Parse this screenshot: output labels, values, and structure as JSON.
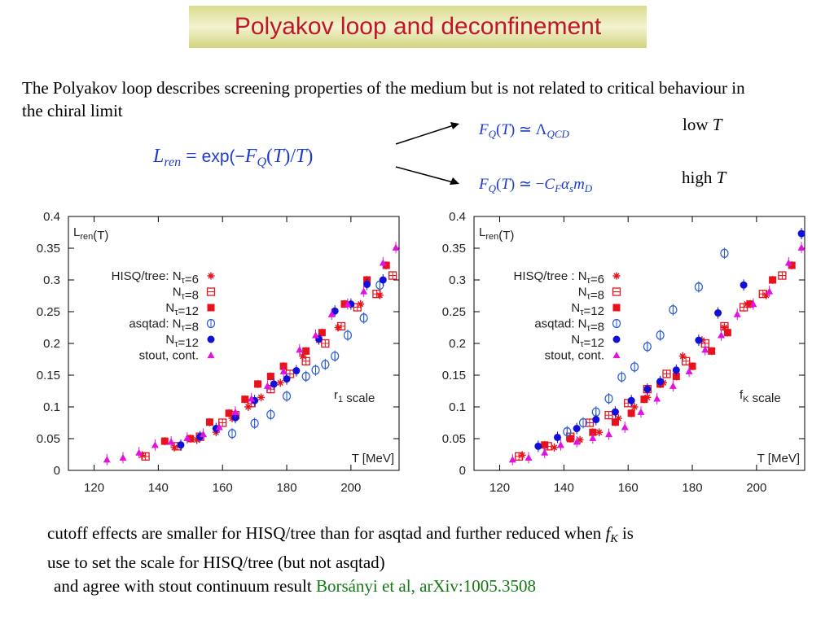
{
  "title": "Polyakov loop  and deconfinement",
  "intro": "The Polyakov loop describes screening properties of the medium but is not related to critical behaviour in the chiral limit",
  "formulas": {
    "main": "L_ren = exp(−F_Q(T)/T)",
    "low": "F_Q(T) ≃ Λ_QCD",
    "high": "F_Q(T) ≃ −C_F α_s m_D"
  },
  "labels": {
    "low": "low",
    "high": "high",
    "var": "T"
  },
  "bottom": {
    "line1_pre": "cutoff effects are smaller for HISQ/tree than for asqtad and further reduced when",
    "line1_fk": "f",
    "line1_fk_sub": "K",
    "line1_post": "is",
    "line2": "use to set the scale for HISQ/tree (but not asqtad)",
    "line3_pre": "and agree with stout continuum result",
    "line3_ref": "Borsányi et al, arXiv:1005.3508"
  },
  "colors": {
    "title_text": "#c0162a",
    "formula": "#1d3bd1",
    "red": "#e8121c",
    "blue": "#1010d8",
    "openblue": "#2f5fd0",
    "magenta": "#e012e0",
    "reference": "#127a12"
  },
  "chart_data": [
    {
      "type": "scatter",
      "ylabel": "L_ren(T)",
      "xlabel": "T [MeV]",
      "scale_note": "r_1 scale",
      "xlim": [
        112,
        215
      ],
      "ylim": [
        0,
        0.4
      ],
      "xticks": [
        120,
        140,
        160,
        180,
        200
      ],
      "yticks": [
        0,
        0.05,
        0.1,
        0.15,
        0.2,
        0.25,
        0.3,
        0.35,
        0.4
      ],
      "legend": "top-left",
      "series": [
        {
          "name": "HISQ/tree: N_τ=6",
          "marker": "star",
          "points": [
            [
              135,
              0.024
            ],
            [
              145,
              0.036
            ],
            [
              152,
              0.048
            ],
            [
              158,
              0.06
            ],
            [
              163,
              0.082
            ],
            [
              168,
              0.1
            ],
            [
              172,
              0.115
            ],
            [
              178,
              0.138
            ],
            [
              185,
              0.18
            ],
            [
              190,
              0.205
            ],
            [
              196,
              0.225
            ],
            [
              203,
              0.262
            ],
            [
              209,
              0.276
            ]
          ]
        },
        {
          "name": "N_τ=8",
          "marker": "opensquare",
          "points": [
            [
              136,
              0.022
            ],
            [
              146,
              0.038
            ],
            [
              153,
              0.053
            ],
            [
              160,
              0.075
            ],
            [
              164,
              0.087
            ],
            [
              169,
              0.106
            ],
            [
              175,
              0.128
            ],
            [
              181,
              0.152
            ],
            [
              186,
              0.172
            ],
            [
              192,
              0.2
            ],
            [
              197,
              0.227
            ],
            [
              202,
              0.257
            ],
            [
              208,
              0.278
            ],
            [
              213,
              0.307
            ]
          ]
        },
        {
          "name": "N_τ=12",
          "marker": "square",
          "points": [
            [
              142,
              0.046
            ],
            [
              150,
              0.05
            ],
            [
              156,
              0.076
            ],
            [
              162,
              0.09
            ],
            [
              167,
              0.112
            ],
            [
              171,
              0.136
            ],
            [
              175,
              0.148
            ],
            [
              179,
              0.164
            ],
            [
              186,
              0.188
            ],
            [
              191,
              0.217
            ],
            [
              198,
              0.262
            ],
            [
              205,
              0.3
            ],
            [
              211,
              0.323
            ]
          ]
        },
        {
          "name": "asqtad: N_τ=8",
          "marker": "opencircle",
          "points": [
            [
              163,
              0.058
            ],
            [
              170,
              0.074
            ],
            [
              175,
              0.088
            ],
            [
              180,
              0.117
            ],
            [
              186,
              0.148
            ],
            [
              189,
              0.158
            ],
            [
              192,
              0.167
            ],
            [
              195,
              0.18
            ],
            [
              199,
              0.213
            ],
            [
              204,
              0.24
            ],
            [
              209,
              0.292
            ]
          ]
        },
        {
          "name": "N_τ=12",
          "marker": "circle",
          "points": [
            [
              147,
              0.04
            ],
            [
              153,
              0.053
            ],
            [
              158,
              0.066
            ],
            [
              164,
              0.083
            ],
            [
              170,
              0.11
            ],
            [
              176,
              0.136
            ],
            [
              180,
              0.144
            ],
            [
              183,
              0.157
            ],
            [
              190,
              0.207
            ],
            [
              195,
              0.251
            ],
            [
              200,
              0.262
            ],
            [
              205,
              0.293
            ],
            [
              210,
              0.3
            ]
          ]
        },
        {
          "name": "stout, cont.",
          "marker": "triangle",
          "points": [
            [
              124,
              0.017
            ],
            [
              129,
              0.02
            ],
            [
              134,
              0.028
            ],
            [
              139,
              0.04
            ],
            [
              144,
              0.045
            ],
            [
              149,
              0.051
            ],
            [
              154,
              0.057
            ],
            [
              159,
              0.068
            ],
            [
              164,
              0.092
            ],
            [
              169,
              0.113
            ],
            [
              174,
              0.133
            ],
            [
              179,
              0.156
            ],
            [
              184,
              0.19
            ],
            [
              189,
              0.213
            ],
            [
              194,
              0.246
            ],
            [
              199,
              0.262
            ],
            [
              204,
              0.282
            ],
            [
              210,
              0.327
            ],
            [
              214,
              0.351
            ]
          ]
        }
      ]
    },
    {
      "type": "scatter",
      "ylabel": "L_ren(T)",
      "xlabel": "T [MeV]",
      "scale_note": "f_K scale",
      "xlim": [
        112,
        215
      ],
      "ylim": [
        0,
        0.4
      ],
      "xticks": [
        120,
        140,
        160,
        180,
        200
      ],
      "yticks": [
        0,
        0.05,
        0.1,
        0.15,
        0.2,
        0.25,
        0.3,
        0.35,
        0.4
      ],
      "legend": "top-left",
      "series": [
        {
          "name": "HISQ/tree : N_τ=6",
          "marker": "star",
          "points": [
            [
              127,
              0.024
            ],
            [
              137,
              0.036
            ],
            [
              145,
              0.048
            ],
            [
              151,
              0.06
            ],
            [
              157,
              0.082
            ],
            [
              162,
              0.1
            ],
            [
              166,
              0.115
            ],
            [
              171,
              0.138
            ],
            [
              177,
              0.18
            ],
            [
              183,
              0.205
            ],
            [
              190,
              0.225
            ],
            [
              197,
              0.262
            ],
            [
              203,
              0.276
            ]
          ]
        },
        {
          "name": "N_τ=8",
          "marker": "opensquare",
          "points": [
            [
              126,
              0.022
            ],
            [
              135,
              0.038
            ],
            [
              142,
              0.053
            ],
            [
              148,
              0.075
            ],
            [
              154,
              0.087
            ],
            [
              160,
              0.106
            ],
            [
              166,
              0.128
            ],
            [
              172,
              0.152
            ],
            [
              178,
              0.172
            ],
            [
              184,
              0.2
            ],
            [
              190,
              0.227
            ],
            [
              196,
              0.257
            ],
            [
              202,
              0.278
            ],
            [
              208,
              0.307
            ]
          ]
        },
        {
          "name": "N_τ=12",
          "marker": "square",
          "points": [
            [
              134,
              0.04
            ],
            [
              142,
              0.05
            ],
            [
              149,
              0.06
            ],
            [
              156,
              0.076
            ],
            [
              161,
              0.09
            ],
            [
              165,
              0.112
            ],
            [
              170,
              0.136
            ],
            [
              175,
              0.148
            ],
            [
              180,
              0.164
            ],
            [
              186,
              0.188
            ],
            [
              191,
              0.217
            ],
            [
              198,
              0.262
            ],
            [
              205,
              0.3
            ],
            [
              211,
              0.323
            ]
          ]
        },
        {
          "name": "asqtad: N_τ=8",
          "marker": "opencircle",
          "points": [
            [
              141,
              0.061
            ],
            [
              146,
              0.075
            ],
            [
              150,
              0.092
            ],
            [
              154,
              0.113
            ],
            [
              158,
              0.147
            ],
            [
              162,
              0.163
            ],
            [
              166,
              0.195
            ],
            [
              170,
              0.213
            ],
            [
              174,
              0.253
            ],
            [
              182,
              0.289
            ],
            [
              190,
              0.342
            ]
          ]
        },
        {
          "name": "N_τ=12",
          "marker": "circle",
          "points": [
            [
              132,
              0.038
            ],
            [
              138,
              0.052
            ],
            [
              144,
              0.066
            ],
            [
              150,
              0.08
            ],
            [
              156,
              0.092
            ],
            [
              161,
              0.11
            ],
            [
              166,
              0.128
            ],
            [
              170,
              0.14
            ],
            [
              175,
              0.158
            ],
            [
              182,
              0.205
            ],
            [
              188,
              0.248
            ],
            [
              196,
              0.292
            ],
            [
              214,
              0.373
            ]
          ]
        },
        {
          "name": "stout, cont.",
          "marker": "triangle",
          "points": [
            [
              124,
              0.017
            ],
            [
              129,
              0.02
            ],
            [
              134,
              0.028
            ],
            [
              139,
              0.04
            ],
            [
              144,
              0.045
            ],
            [
              149,
              0.051
            ],
            [
              154,
              0.057
            ],
            [
              159,
              0.068
            ],
            [
              164,
              0.092
            ],
            [
              169,
              0.113
            ],
            [
              174,
              0.133
            ],
            [
              179,
              0.156
            ],
            [
              184,
              0.19
            ],
            [
              189,
              0.213
            ],
            [
              194,
              0.246
            ],
            [
              199,
              0.262
            ],
            [
              204,
              0.282
            ],
            [
              210,
              0.327
            ],
            [
              214,
              0.351
            ]
          ]
        }
      ]
    }
  ]
}
